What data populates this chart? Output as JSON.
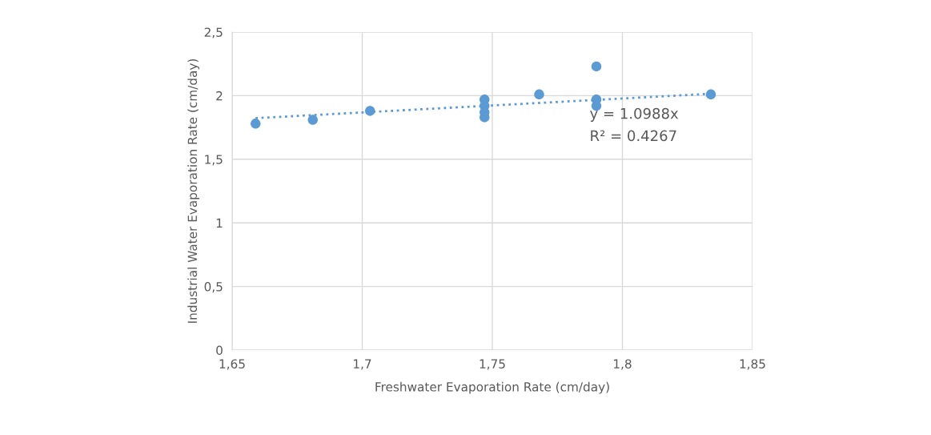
{
  "chart_data": {
    "type": "scatter",
    "xlabel": "Freshwater Evaporation Rate (cm/day)",
    "ylabel": "Industrial Water Evaporation Rate (cm/day)",
    "series": [
      {
        "marker": "circle",
        "color": "#5b9bd5",
        "x": [
          1.659,
          1.681,
          1.703,
          1.747,
          1.747,
          1.747,
          1.747,
          1.768,
          1.79,
          1.79,
          1.79,
          1.834
        ],
        "values": [
          1.78,
          1.81,
          1.88,
          1.97,
          1.92,
          1.87,
          1.83,
          2.01,
          2.23,
          1.97,
          1.92,
          2.01
        ]
      },
      {
        "type": "line",
        "color": "#5b9bd5",
        "line_style": "dotted",
        "marker": "none",
        "x": [
          1.659,
          1.834
        ],
        "values": [
          1.823,
          2.015
        ]
      }
    ],
    "annotations": [
      "y = 1.0988x",
      "R² = 0.4267"
    ],
    "xlim": [
      1.65,
      1.85
    ],
    "xticks": [
      {
        "value": 1.65,
        "label": "1,65"
      },
      {
        "value": 1.7,
        "label": "1,7"
      },
      {
        "value": 1.75,
        "label": "1,75"
      },
      {
        "value": 1.8,
        "label": "1,8"
      },
      {
        "value": 1.85,
        "label": "1,85"
      }
    ],
    "ylim": [
      0,
      2.5
    ],
    "yticks": [
      0,
      {
        "value": 0.5,
        "label": "0,5"
      },
      1,
      {
        "value": 1.5,
        "label": "1,5"
      },
      2,
      {
        "value": 2.5,
        "label": "2,5"
      }
    ],
    "grid": true
  }
}
